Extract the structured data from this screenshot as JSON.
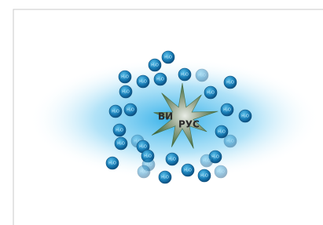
{
  "virus": {
    "label_left": "ВИ",
    "label_right": "РУС"
  },
  "molecule": {
    "label": "H₂O"
  }
}
